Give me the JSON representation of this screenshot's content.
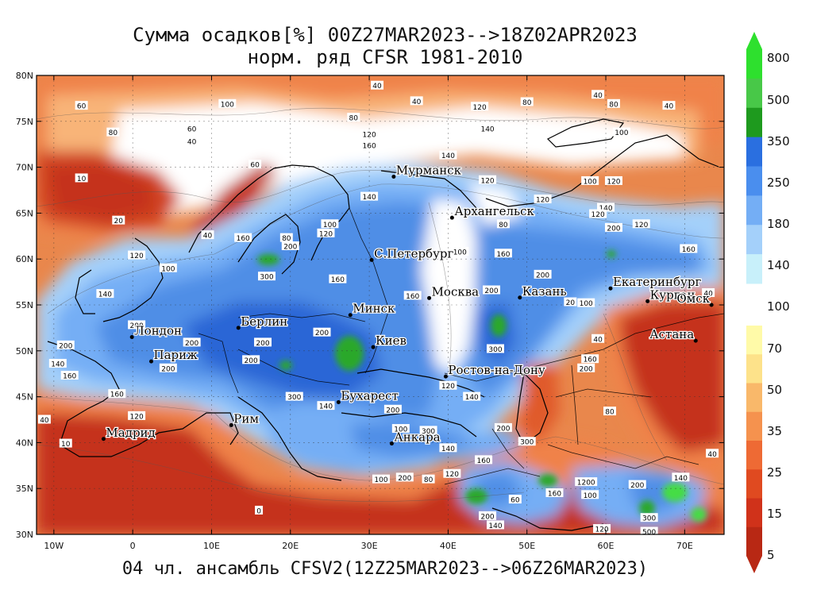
{
  "title": {
    "line1": "Сумма осадков[%] 00Z27MAR2023-->18Z02APR2023",
    "line2": "норм. ряд CFSR 1981-2010"
  },
  "footer": "04 чл. ансамбль CFSV2(12Z25MAR2023-->06Z26MAR2023)",
  "map": {
    "lat_labels": [
      "80N",
      "75N",
      "70N",
      "65N",
      "60N",
      "55N",
      "50N",
      "45N",
      "40N",
      "35N",
      "30N"
    ],
    "lon_labels": [
      "10W",
      "0",
      "10E",
      "20E",
      "30E",
      "40E",
      "50E",
      "60E",
      "70E"
    ],
    "cities": [
      {
        "name": "Мурманск",
        "lon": 33.1,
        "lat": 68.97
      },
      {
        "name": "Архангельск",
        "lon": 40.5,
        "lat": 64.5
      },
      {
        "name": "С.Петербург",
        "lon": 30.3,
        "lat": 59.9
      },
      {
        "name": "Москва",
        "lon": 37.6,
        "lat": 55.75
      },
      {
        "name": "Казань",
        "lon": 49.1,
        "lat": 55.8
      },
      {
        "name": "Екатеринбург",
        "lon": 60.6,
        "lat": 56.8
      },
      {
        "name": "Курган",
        "lon": 65.3,
        "lat": 55.4
      },
      {
        "name": "Омск",
        "lon": 73.4,
        "lat": 55.0
      },
      {
        "name": "Астана",
        "lon": 71.4,
        "lat": 51.1
      },
      {
        "name": "Минск",
        "lon": 27.6,
        "lat": 53.9
      },
      {
        "name": "Киев",
        "lon": 30.5,
        "lat": 50.4
      },
      {
        "name": "Берлин",
        "lon": 13.4,
        "lat": 52.5
      },
      {
        "name": "Лондон",
        "lon": -0.1,
        "lat": 51.5
      },
      {
        "name": "Париж",
        "lon": 2.35,
        "lat": 48.85
      },
      {
        "name": "Ростов-на-Дону",
        "lon": 39.7,
        "lat": 47.2
      },
      {
        "name": "Бухарест",
        "lon": 26.1,
        "lat": 44.4
      },
      {
        "name": "Рим",
        "lon": 12.5,
        "lat": 41.9
      },
      {
        "name": "Мадрид",
        "lon": -3.7,
        "lat": 40.4
      },
      {
        "name": "Анкара",
        "lon": 32.85,
        "lat": 39.9
      }
    ],
    "contour_labels": [
      {
        "t": "40",
        "lon": 31,
        "lat": 78.9
      },
      {
        "t": "60",
        "lon": -6.5,
        "lat": 76.7
      },
      {
        "t": "100",
        "lon": 12,
        "lat": 76.9
      },
      {
        "t": "40",
        "lon": 36,
        "lat": 77.2
      },
      {
        "t": "80",
        "lon": 28,
        "lat": 75.4
      },
      {
        "t": "120",
        "lon": 44,
        "lat": 76.6
      },
      {
        "t": "80",
        "lon": 50,
        "lat": 77.1
      },
      {
        "t": "40",
        "lon": 59,
        "lat": 77.9
      },
      {
        "t": "80",
        "lon": 61,
        "lat": 76.9
      },
      {
        "t": "40",
        "lon": 68,
        "lat": 76.7
      },
      {
        "t": "60",
        "lon": 7.5,
        "lat": 74.2
      },
      {
        "t": "80",
        "lon": -2.5,
        "lat": 73.8
      },
      {
        "t": "40",
        "lon": 7.5,
        "lat": 72.8
      },
      {
        "t": "120",
        "lon": 30,
        "lat": 73.6
      },
      {
        "t": "160",
        "lon": 30,
        "lat": 72.4
      },
      {
        "t": "140",
        "lon": 45,
        "lat": 74.2
      },
      {
        "t": "100",
        "lon": 62,
        "lat": 73.8
      },
      {
        "t": "60",
        "lon": 15.5,
        "lat": 70.3
      },
      {
        "t": "140",
        "lon": 40,
        "lat": 71.3
      },
      {
        "t": "10",
        "lon": -6.5,
        "lat": 68.8
      },
      {
        "t": "120",
        "lon": 45,
        "lat": 68.6
      },
      {
        "t": "100",
        "lon": 58,
        "lat": 68.5
      },
      {
        "t": "120",
        "lon": 61,
        "lat": 68.5
      },
      {
        "t": "140",
        "lon": 30,
        "lat": 66.8
      },
      {
        "t": "120",
        "lon": 52,
        "lat": 66.5
      },
      {
        "t": "140",
        "lon": 60,
        "lat": 65.6
      },
      {
        "t": "120",
        "lon": 59,
        "lat": 64.9
      },
      {
        "t": "20",
        "lon": -1.8,
        "lat": 64.2
      },
      {
        "t": "40",
        "lon": 9.5,
        "lat": 62.6
      },
      {
        "t": "160",
        "lon": 14,
        "lat": 62.3
      },
      {
        "t": "80",
        "lon": 19.5,
        "lat": 62.3
      },
      {
        "t": "120",
        "lon": 24.5,
        "lat": 62.8
      },
      {
        "t": "100",
        "lon": 25,
        "lat": 63.8
      },
      {
        "t": "80",
        "lon": 47,
        "lat": 63.8
      },
      {
        "t": "200",
        "lon": 61,
        "lat": 63.4
      },
      {
        "t": "120",
        "lon": 64.5,
        "lat": 63.8
      },
      {
        "t": "200",
        "lon": 20,
        "lat": 61.4
      },
      {
        "t": "160",
        "lon": 47,
        "lat": 60.6
      },
      {
        "t": "160",
        "lon": 70.5,
        "lat": 61.1
      },
      {
        "t": "120",
        "lon": 0.5,
        "lat": 60.4
      },
      {
        "t": "100",
        "lon": 4.5,
        "lat": 59.0
      },
      {
        "t": "100",
        "lon": 41.5,
        "lat": 60.8
      },
      {
        "t": "300",
        "lon": 17,
        "lat": 58.1
      },
      {
        "t": "160",
        "lon": 26,
        "lat": 57.8
      },
      {
        "t": "200",
        "lon": 52,
        "lat": 58.3
      },
      {
        "t": "200",
        "lon": 45.5,
        "lat": 56.6
      },
      {
        "t": "20",
        "lon": 55.5,
        "lat": 55.3
      },
      {
        "t": "100",
        "lon": 57.5,
        "lat": 55.2
      },
      {
        "t": "40",
        "lon": 73,
        "lat": 56.3
      },
      {
        "t": "140",
        "lon": -3.5,
        "lat": 56.2
      },
      {
        "t": "160",
        "lon": 35.5,
        "lat": 56.0
      },
      {
        "t": "200",
        "lon": 0.5,
        "lat": 52.8
      },
      {
        "t": "200",
        "lon": 16.5,
        "lat": 50.9
      },
      {
        "t": "200",
        "lon": 24,
        "lat": 52.0
      },
      {
        "t": "300",
        "lon": 46,
        "lat": 50.2
      },
      {
        "t": "40",
        "lon": 59,
        "lat": 51.3
      },
      {
        "t": "200",
        "lon": -8.5,
        "lat": 50.6
      },
      {
        "t": "200",
        "lon": 7.5,
        "lat": 50.9
      },
      {
        "t": "140",
        "lon": -9.5,
        "lat": 48.6
      },
      {
        "t": "200",
        "lon": 4.5,
        "lat": 48.1
      },
      {
        "t": "160",
        "lon": -8,
        "lat": 47.3
      },
      {
        "t": "200",
        "lon": 15,
        "lat": 49.0
      },
      {
        "t": "200",
        "lon": 57.5,
        "lat": 48.1
      },
      {
        "t": "160",
        "lon": 58,
        "lat": 49.1
      },
      {
        "t": "160",
        "lon": -2,
        "lat": 45.3
      },
      {
        "t": "140",
        "lon": 24.5,
        "lat": 44.0
      },
      {
        "t": "300",
        "lon": 20.5,
        "lat": 45.0
      },
      {
        "t": "140",
        "lon": 43,
        "lat": 45.0
      },
      {
        "t": "120",
        "lon": 40,
        "lat": 46.2
      },
      {
        "t": "200",
        "lon": 33,
        "lat": 43.6
      },
      {
        "t": "80",
        "lon": 60.5,
        "lat": 43.4
      },
      {
        "t": "40",
        "lon": -11.2,
        "lat": 42.5
      },
      {
        "t": "120",
        "lon": 0.5,
        "lat": 42.9
      },
      {
        "t": "100",
        "lon": 34,
        "lat": 41.5
      },
      {
        "t": "300",
        "lon": 37.5,
        "lat": 41.3
      },
      {
        "t": "300",
        "lon": 50,
        "lat": 40.1
      },
      {
        "t": "200",
        "lon": 47,
        "lat": 41.6
      },
      {
        "t": "10",
        "lon": -8.5,
        "lat": 39.9
      },
      {
        "t": "40",
        "lon": 73.5,
        "lat": 38.8
      },
      {
        "t": "140",
        "lon": 40,
        "lat": 39.4
      },
      {
        "t": "160",
        "lon": 44.5,
        "lat": 38.1
      },
      {
        "t": "120",
        "lon": 40.5,
        "lat": 36.6
      },
      {
        "t": "100",
        "lon": 31.5,
        "lat": 36.0
      },
      {
        "t": "200",
        "lon": 34.5,
        "lat": 36.2
      },
      {
        "t": "80",
        "lon": 37.5,
        "lat": 36.0
      },
      {
        "t": "1200",
        "lon": 57.5,
        "lat": 35.7
      },
      {
        "t": "200",
        "lon": 64,
        "lat": 35.4
      },
      {
        "t": "140",
        "lon": 69.5,
        "lat": 36.2
      },
      {
        "t": "100",
        "lon": 58,
        "lat": 34.3
      },
      {
        "t": "160",
        "lon": 53.5,
        "lat": 34.5
      },
      {
        "t": "0",
        "lon": 16,
        "lat": 32.6
      },
      {
        "t": "60",
        "lon": 48.5,
        "lat": 33.8
      },
      {
        "t": "200",
        "lon": 45,
        "lat": 32.0
      },
      {
        "t": "140",
        "lon": 46,
        "lat": 31.0
      },
      {
        "t": "300",
        "lon": 65.5,
        "lat": 31.8
      },
      {
        "t": "120",
        "lon": 59.5,
        "lat": 30.6
      },
      {
        "t": "500",
        "lon": 65.5,
        "lat": 30.3
      }
    ]
  },
  "colorbar": {
    "labels": [
      "800",
      "500",
      "350",
      "250",
      "180",
      "140",
      "100",
      "70",
      "50",
      "35",
      "25",
      "15",
      "5"
    ],
    "upper_colors": [
      "#2ee02e",
      "#48c848",
      "#1e9a1e",
      "#2a6fe0",
      "#4a8eee",
      "#74aef5",
      "#a4d0fa",
      "#c8f0fa"
    ],
    "lower_colors": [
      "#fffaa8",
      "#fde28a",
      "#f9b86a",
      "#f5924e",
      "#ee6a34",
      "#e04a20",
      "#d0321a",
      "#b82814"
    ]
  },
  "colors": {
    "dry_red": "#c5301a",
    "orange": "#f08248",
    "light_orange": "#f8b478",
    "cream": "#fbe7a4",
    "white_band": "#ffffff",
    "pale_cyan": "#c9eefb",
    "light_blue": "#8cc0f4",
    "mid_blue": "#4f8ee6",
    "deep_blue": "#2c66d6",
    "green": "#2aa82a",
    "bright_green": "#44dd44"
  }
}
